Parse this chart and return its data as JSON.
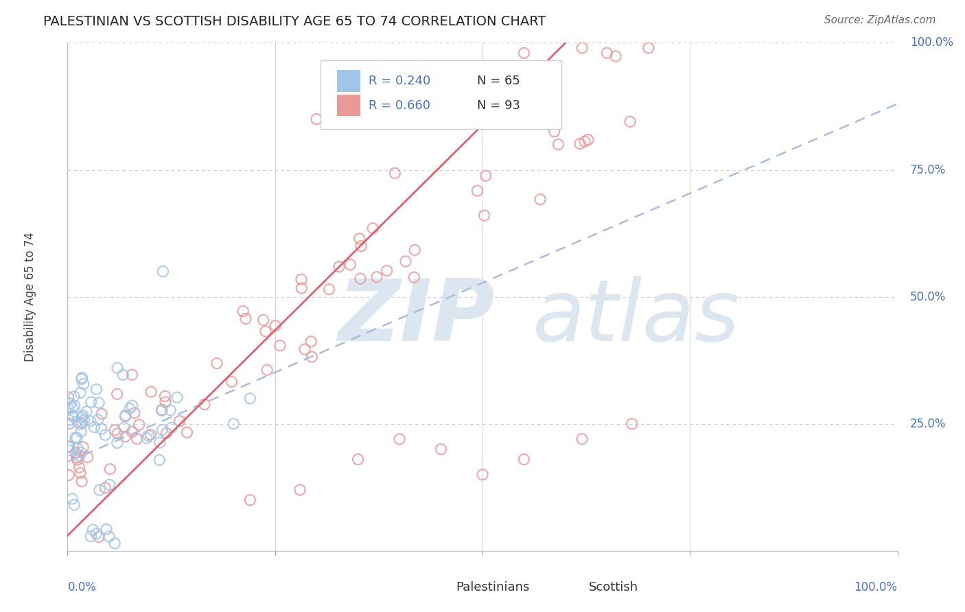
{
  "title": "PALESTINIAN VS SCOTTISH DISABILITY AGE 65 TO 74 CORRELATION CHART",
  "source": "Source: ZipAtlas.com",
  "ylabel": "Disability Age 65 to 74",
  "xlim": [
    0.0,
    1.0
  ],
  "ylim": [
    0.0,
    1.0
  ],
  "legend_r1": "R = 0.240",
  "legend_n1": "N = 65",
  "legend_r2": "R = 0.660",
  "legend_n2": "N = 93",
  "color_palestinian": "#9fc5e8",
  "color_scottish": "#ea9999",
  "color_line_palestinian": "#9fc5e8",
  "color_line_scottish": "#e06070",
  "bg_color": "#ffffff",
  "grid_color": "#cccccc",
  "text_color_blue": "#4472c4",
  "watermark_color": "#dce6f1",
  "title_fontsize": 14,
  "label_fontsize": 12,
  "source_fontsize": 11,
  "scatter_size": 120,
  "pal_line_x0": 0.0,
  "pal_line_y0": 0.175,
  "pal_line_x1": 1.0,
  "pal_line_y1": 0.88,
  "scot_line_x0": 0.0,
  "scot_line_y0": 0.03,
  "scot_line_x1": 0.6,
  "scot_line_y1": 1.0
}
